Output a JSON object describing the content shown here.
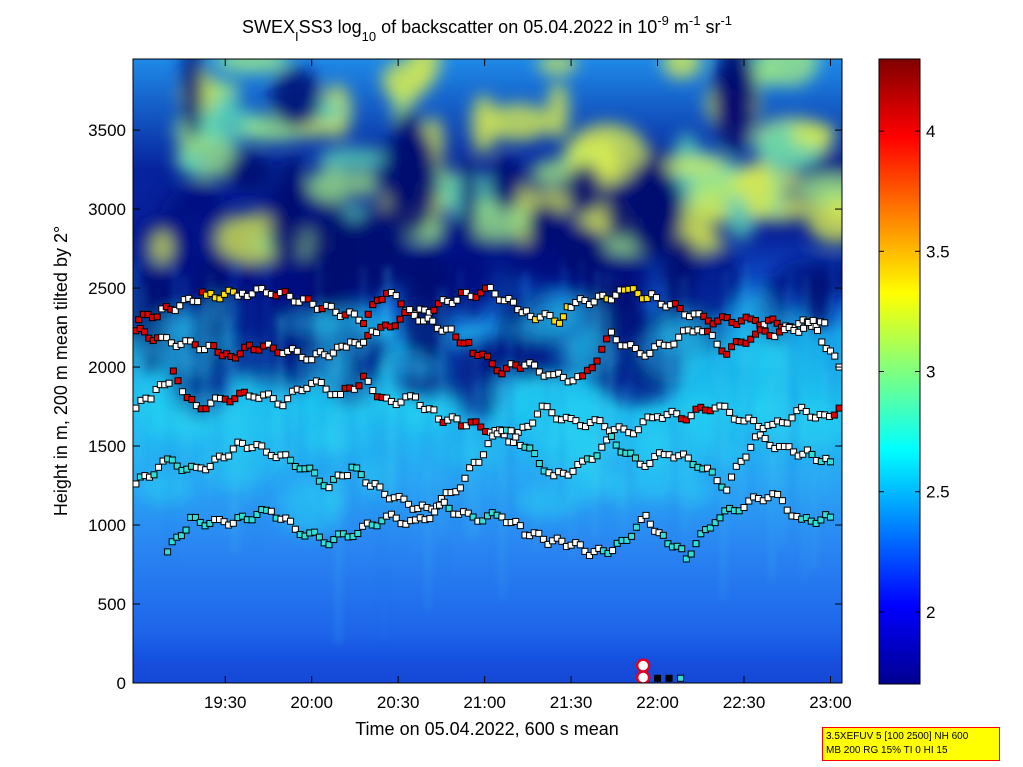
{
  "chart_data": {
    "type": "heatmap",
    "title": {
      "part1": "SWEX",
      "sub1": "I",
      "part2": "SS3 log",
      "sub2": "10",
      "part3": " of backscatter on 05.04.2022 in 10",
      "sup1": "-9",
      "part4": " m",
      "sup2": "-1",
      "part5": " sr",
      "sup3": "-1"
    },
    "xlabel": "Time on 05.04.2022, 600 s mean",
    "ylabel": "Height in m, 200 m mean tilted by 2°",
    "x_ticks": [
      "19:30",
      "20:00",
      "20:30",
      "21:00",
      "21:30",
      "22:00",
      "22:30",
      "23:00"
    ],
    "x_tick_minutes": [
      1170,
      1200,
      1230,
      1260,
      1290,
      1320,
      1350,
      1380
    ],
    "xlim_minutes": [
      1138,
      1384
    ],
    "y_ticks": [
      "0",
      "500",
      "1000",
      "1500",
      "2000",
      "2500",
      "3000",
      "3500"
    ],
    "y_tick_values": [
      0,
      500,
      1000,
      1500,
      2000,
      2500,
      3000,
      3500
    ],
    "ylim": [
      0,
      3950
    ],
    "colorbar": {
      "ticks": [
        "2",
        "2.5",
        "3",
        "3.5",
        "4"
      ],
      "tick_values": [
        2,
        2.5,
        3,
        3.5,
        4
      ],
      "range": [
        1.7,
        4.3
      ],
      "colormap": "jet"
    },
    "layers": [
      {
        "name": "high",
        "min_minutes": 1141,
        "max_minutes": 1382,
        "points": [
          {
            "x": 1140,
            "y": 2300,
            "c": "red"
          },
          {
            "x": 1148,
            "y": 2350,
            "c": "white"
          },
          {
            "x": 1162,
            "y": 2450,
            "c": "red"
          },
          {
            "x": 1165,
            "y": 2450,
            "c": "yellow"
          },
          {
            "x": 1176,
            "y": 2470,
            "c": "white"
          },
          {
            "x": 1186,
            "y": 2480,
            "c": "white"
          },
          {
            "x": 1218,
            "y": 2300,
            "c": "red"
          },
          {
            "x": 1226,
            "y": 2480,
            "c": "red"
          },
          {
            "x": 1236,
            "y": 2330,
            "c": "white"
          },
          {
            "x": 1252,
            "y": 2450,
            "c": "red"
          },
          {
            "x": 1262,
            "y": 2480,
            "c": "white"
          },
          {
            "x": 1270,
            "y": 2400,
            "c": "white"
          },
          {
            "x": 1276,
            "y": 2330,
            "c": "white"
          },
          {
            "x": 1286,
            "y": 2300,
            "c": "yellow"
          },
          {
            "x": 1290,
            "y": 2400,
            "c": "white"
          },
          {
            "x": 1298,
            "y": 2420,
            "c": "white"
          },
          {
            "x": 1310,
            "y": 2480,
            "c": "yellow"
          },
          {
            "x": 1318,
            "y": 2440,
            "c": "white"
          },
          {
            "x": 1336,
            "y": 2300,
            "c": "red"
          },
          {
            "x": 1354,
            "y": 2290,
            "c": "red"
          },
          {
            "x": 1366,
            "y": 2270,
            "c": "white"
          },
          {
            "x": 1378,
            "y": 2280,
            "c": "white"
          }
        ]
      },
      {
        "name": "upper",
        "min_minutes": 1139,
        "max_minutes": 1383,
        "points": [
          {
            "x": 1139,
            "y": 2230,
            "c": "red"
          },
          {
            "x": 1148,
            "y": 2170,
            "c": "white"
          },
          {
            "x": 1158,
            "y": 2140,
            "c": "white"
          },
          {
            "x": 1166,
            "y": 2120,
            "c": "red"
          },
          {
            "x": 1172,
            "y": 2070,
            "c": "red"
          },
          {
            "x": 1180,
            "y": 2130,
            "c": "red"
          },
          {
            "x": 1190,
            "y": 2110,
            "c": "white"
          },
          {
            "x": 1200,
            "y": 2060,
            "c": "white"
          },
          {
            "x": 1212,
            "y": 2120,
            "c": "white"
          },
          {
            "x": 1224,
            "y": 2230,
            "c": "red"
          },
          {
            "x": 1234,
            "y": 2340,
            "c": "white"
          },
          {
            "x": 1242,
            "y": 2280,
            "c": "white"
          },
          {
            "x": 1250,
            "y": 2200,
            "c": "red"
          },
          {
            "x": 1256,
            "y": 2110,
            "c": "red"
          },
          {
            "x": 1266,
            "y": 1980,
            "c": "red"
          },
          {
            "x": 1274,
            "y": 2020,
            "c": "white"
          },
          {
            "x": 1284,
            "y": 1940,
            "c": "white"
          },
          {
            "x": 1294,
            "y": 1920,
            "c": "red"
          },
          {
            "x": 1304,
            "y": 2200,
            "c": "white"
          },
          {
            "x": 1314,
            "y": 2080,
            "c": "white"
          },
          {
            "x": 1324,
            "y": 2150,
            "c": "white"
          },
          {
            "x": 1334,
            "y": 2260,
            "c": "white"
          },
          {
            "x": 1344,
            "y": 2100,
            "c": "red"
          },
          {
            "x": 1354,
            "y": 2210,
            "c": "red"
          },
          {
            "x": 1364,
            "y": 2220,
            "c": "white"
          },
          {
            "x": 1374,
            "y": 2270,
            "c": "white"
          },
          {
            "x": 1383,
            "y": 2000,
            "c": "white"
          }
        ]
      },
      {
        "name": "middle",
        "min_minutes": 1139,
        "max_minutes": 1383,
        "points": [
          {
            "x": 1139,
            "y": 1740,
            "c": "white"
          },
          {
            "x": 1146,
            "y": 1840,
            "c": "white"
          },
          {
            "x": 1152,
            "y": 1950,
            "c": "red"
          },
          {
            "x": 1160,
            "y": 1740,
            "c": "white"
          },
          {
            "x": 1170,
            "y": 1800,
            "c": "red"
          },
          {
            "x": 1180,
            "y": 1830,
            "c": "white"
          },
          {
            "x": 1190,
            "y": 1780,
            "c": "white"
          },
          {
            "x": 1200,
            "y": 1910,
            "c": "white"
          },
          {
            "x": 1210,
            "y": 1820,
            "c": "white"
          },
          {
            "x": 1218,
            "y": 1920,
            "c": "red"
          },
          {
            "x": 1226,
            "y": 1780,
            "c": "white"
          },
          {
            "x": 1236,
            "y": 1800,
            "c": "white"
          },
          {
            "x": 1244,
            "y": 1680,
            "c": "white"
          },
          {
            "x": 1252,
            "y": 1650,
            "c": "red"
          },
          {
            "x": 1262,
            "y": 1610,
            "c": "white"
          },
          {
            "x": 1270,
            "y": 1530,
            "c": "white"
          },
          {
            "x": 1280,
            "y": 1740,
            "c": "white"
          },
          {
            "x": 1290,
            "y": 1650,
            "c": "white"
          },
          {
            "x": 1300,
            "y": 1640,
            "c": "white"
          },
          {
            "x": 1310,
            "y": 1580,
            "c": "white"
          },
          {
            "x": 1320,
            "y": 1700,
            "c": "white"
          },
          {
            "x": 1330,
            "y": 1690,
            "c": "red"
          },
          {
            "x": 1340,
            "y": 1760,
            "c": "white"
          },
          {
            "x": 1350,
            "y": 1660,
            "c": "white"
          },
          {
            "x": 1360,
            "y": 1620,
            "c": "white"
          },
          {
            "x": 1370,
            "y": 1720,
            "c": "white"
          },
          {
            "x": 1378,
            "y": 1680,
            "c": "white"
          },
          {
            "x": 1383,
            "y": 1740,
            "c": "red"
          }
        ]
      },
      {
        "name": "lower",
        "min_minutes": 1139,
        "max_minutes": 1383,
        "points": [
          {
            "x": 1139,
            "y": 1260,
            "c": "white"
          },
          {
            "x": 1150,
            "y": 1400,
            "c": "cyan"
          },
          {
            "x": 1160,
            "y": 1340,
            "c": "white"
          },
          {
            "x": 1168,
            "y": 1420,
            "c": "white"
          },
          {
            "x": 1176,
            "y": 1520,
            "c": "white"
          },
          {
            "x": 1186,
            "y": 1460,
            "c": "white"
          },
          {
            "x": 1196,
            "y": 1380,
            "c": "cyan"
          },
          {
            "x": 1206,
            "y": 1250,
            "c": "white"
          },
          {
            "x": 1214,
            "y": 1360,
            "c": "cyan"
          },
          {
            "x": 1222,
            "y": 1240,
            "c": "white"
          },
          {
            "x": 1232,
            "y": 1140,
            "c": "white"
          },
          {
            "x": 1240,
            "y": 1100,
            "c": "white"
          },
          {
            "x": 1250,
            "y": 1220,
            "c": "white"
          },
          {
            "x": 1258,
            "y": 1420,
            "c": "white"
          },
          {
            "x": 1266,
            "y": 1620,
            "c": "white"
          },
          {
            "x": 1274,
            "y": 1500,
            "c": "cyan"
          },
          {
            "x": 1284,
            "y": 1300,
            "c": "white"
          },
          {
            "x": 1294,
            "y": 1380,
            "c": "white"
          },
          {
            "x": 1304,
            "y": 1540,
            "c": "cyan"
          },
          {
            "x": 1314,
            "y": 1380,
            "c": "white"
          },
          {
            "x": 1324,
            "y": 1460,
            "c": "white"
          },
          {
            "x": 1334,
            "y": 1390,
            "c": "cyan"
          },
          {
            "x": 1344,
            "y": 1240,
            "c": "white"
          },
          {
            "x": 1354,
            "y": 1560,
            "c": "white"
          },
          {
            "x": 1364,
            "y": 1480,
            "c": "white"
          },
          {
            "x": 1372,
            "y": 1450,
            "c": "white"
          },
          {
            "x": 1380,
            "y": 1400,
            "c": "cyan"
          }
        ]
      },
      {
        "name": "bottom",
        "min_minutes": 1150,
        "max_minutes": 1383,
        "points": [
          {
            "x": 1150,
            "y": 830,
            "c": "cyan"
          },
          {
            "x": 1158,
            "y": 1030,
            "c": "cyan"
          },
          {
            "x": 1168,
            "y": 1010,
            "c": "white"
          },
          {
            "x": 1176,
            "y": 1040,
            "c": "cyan"
          },
          {
            "x": 1186,
            "y": 1090,
            "c": "white"
          },
          {
            "x": 1196,
            "y": 960,
            "c": "cyan"
          },
          {
            "x": 1206,
            "y": 900,
            "c": "cyan"
          },
          {
            "x": 1216,
            "y": 960,
            "c": "cyan"
          },
          {
            "x": 1226,
            "y": 1050,
            "c": "white"
          },
          {
            "x": 1236,
            "y": 1010,
            "c": "white"
          },
          {
            "x": 1246,
            "y": 1120,
            "c": "white"
          },
          {
            "x": 1256,
            "y": 1040,
            "c": "cyan"
          },
          {
            "x": 1266,
            "y": 1060,
            "c": "white"
          },
          {
            "x": 1274,
            "y": 960,
            "c": "white"
          },
          {
            "x": 1282,
            "y": 900,
            "c": "white"
          },
          {
            "x": 1290,
            "y": 880,
            "c": "white"
          },
          {
            "x": 1298,
            "y": 820,
            "c": "white"
          },
          {
            "x": 1306,
            "y": 860,
            "c": "cyan"
          },
          {
            "x": 1316,
            "y": 1040,
            "c": "white"
          },
          {
            "x": 1322,
            "y": 930,
            "c": "cyan"
          },
          {
            "x": 1330,
            "y": 800,
            "c": "cyan"
          },
          {
            "x": 1340,
            "y": 1040,
            "c": "cyan"
          },
          {
            "x": 1350,
            "y": 1130,
            "c": "white"
          },
          {
            "x": 1360,
            "y": 1200,
            "c": "white"
          },
          {
            "x": 1370,
            "y": 1020,
            "c": "cyan"
          },
          {
            "x": 1380,
            "y": 1050,
            "c": "cyan"
          }
        ]
      }
    ],
    "ground_markers": [
      {
        "x": 1315,
        "y": 110,
        "c": "white-ring"
      },
      {
        "x": 1315,
        "y": 35,
        "c": "white-ring"
      }
    ],
    "ground_points": [
      {
        "x": 1316,
        "y": 30,
        "c": "black"
      },
      {
        "x": 1320,
        "y": 30,
        "c": "black"
      },
      {
        "x": 1324,
        "y": 30,
        "c": "black"
      },
      {
        "x": 1328,
        "y": 30,
        "c": "cyan"
      }
    ]
  },
  "info_box": {
    "line1": "3.5XEFUV 5 [100 2500] NH 600",
    "line2": "MB 200 RG 15% TI 0 HI 15"
  },
  "marker_colors": {
    "white": "#ffffff",
    "red": "#e00000",
    "yellow": "#ffe000",
    "cyan": "#30e0d8",
    "black": "#000000"
  }
}
